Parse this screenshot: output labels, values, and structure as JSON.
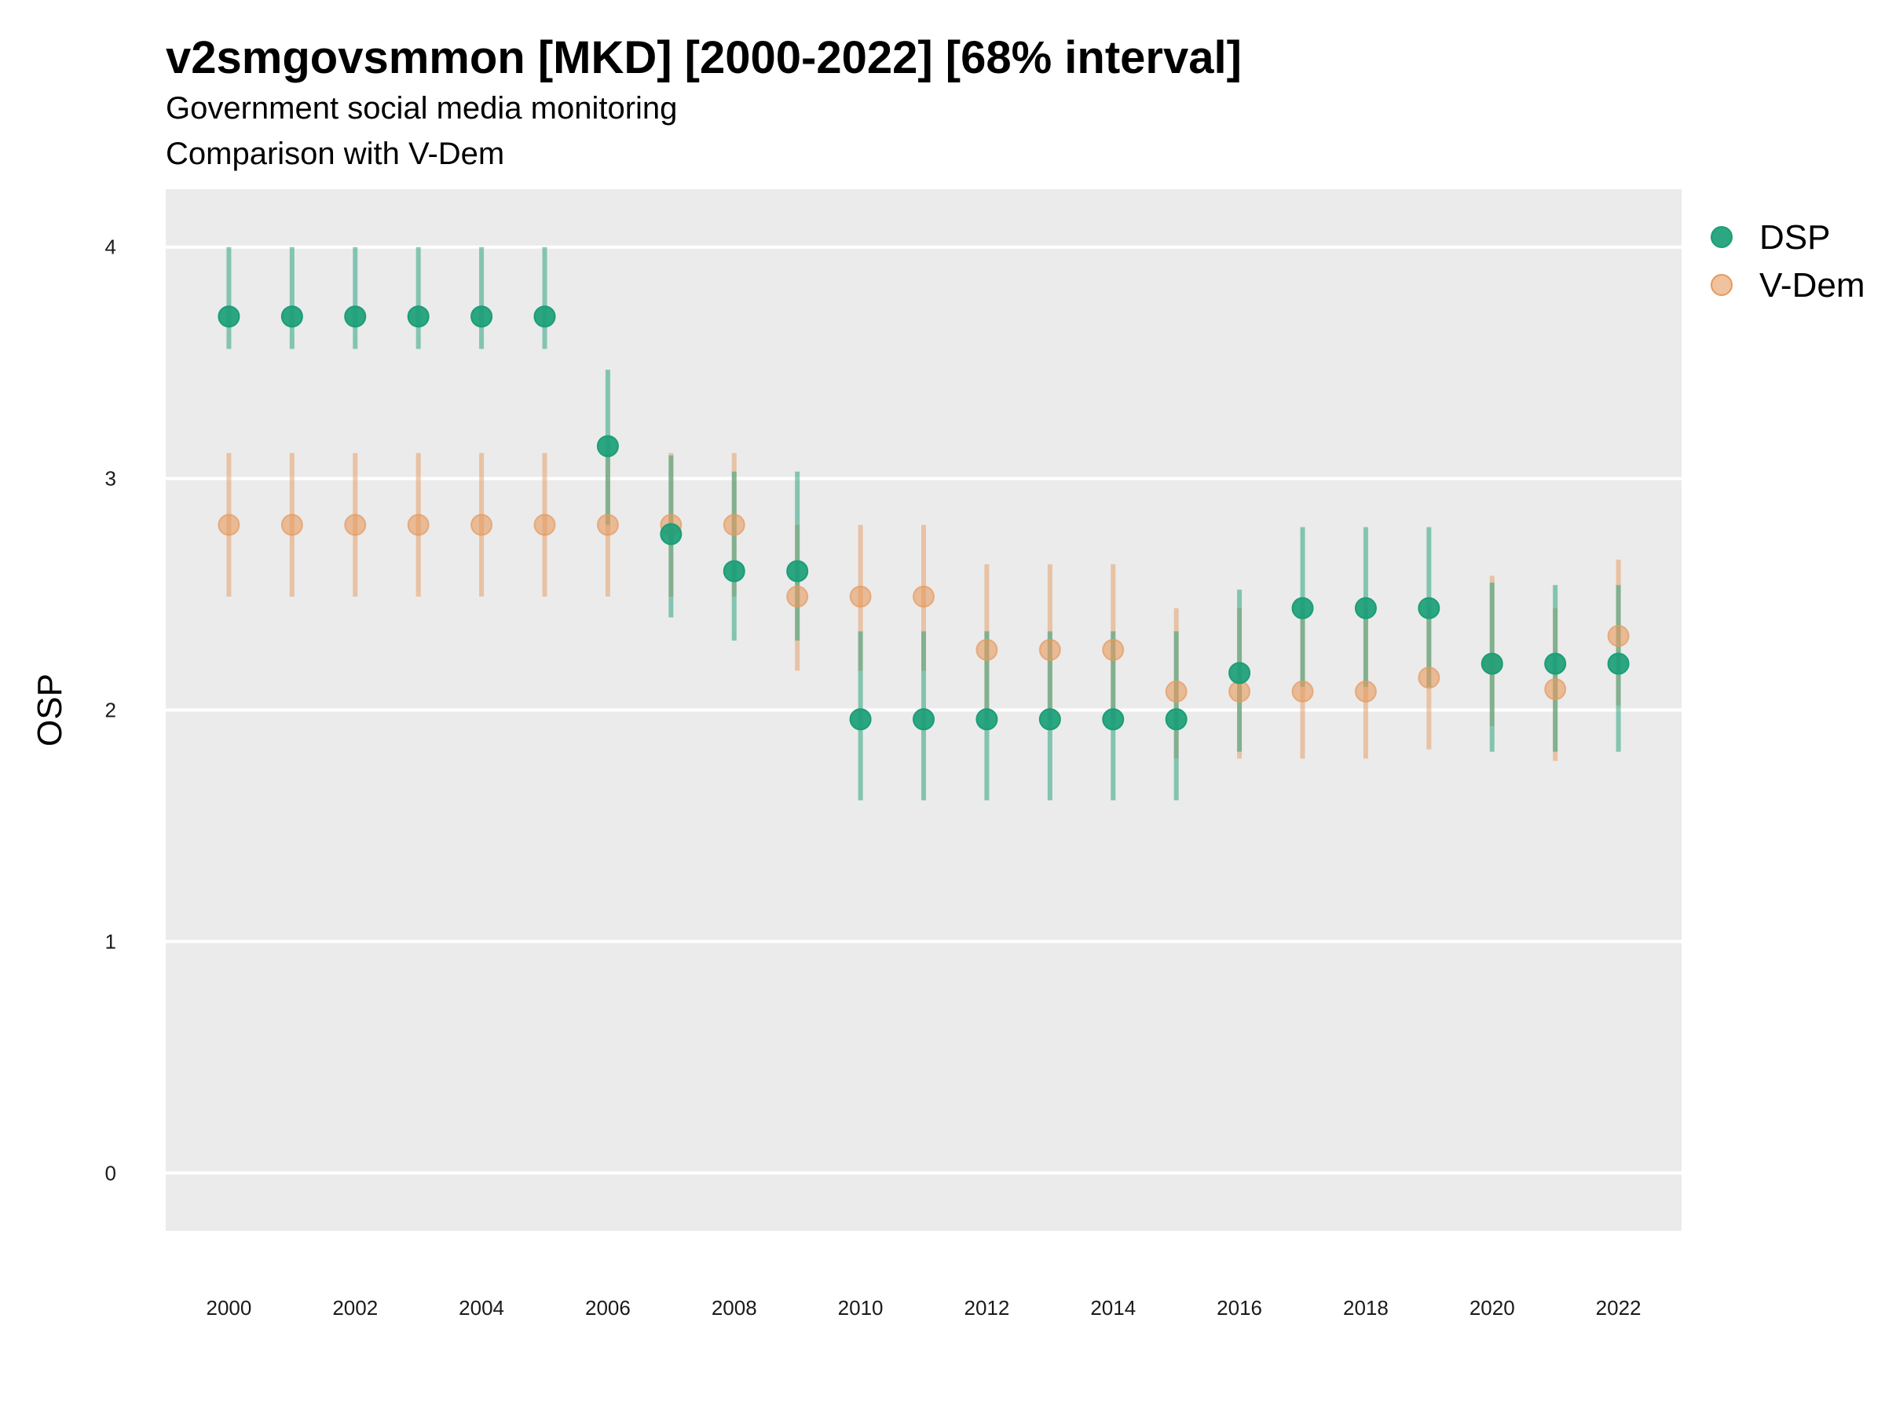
{
  "title": "v2smgovsmmon [MKD] [2000-2022] [68% interval]",
  "subtitle_1": "Government social media monitoring",
  "subtitle_2": "Comparison with V-Dem",
  "colors": {
    "DSP": "#1b9e77",
    "V-Dem": "#e69a5e",
    "panel": "#ebebeb",
    "grid": "#ffffff"
  },
  "chart_data": {
    "type": "scatter",
    "error_bars": "68% interval",
    "ylabel": "OSP",
    "xlabel": "",
    "ylim": [
      -0.25,
      4.25
    ],
    "xlim": [
      1999,
      2023
    ],
    "y_ticks": [
      0,
      1,
      2,
      3,
      4
    ],
    "x_ticks": [
      2000,
      2002,
      2004,
      2006,
      2008,
      2010,
      2012,
      2014,
      2016,
      2018,
      2020,
      2022
    ],
    "grid": true,
    "legend_position": "right-top",
    "series": [
      {
        "name": "DSP",
        "x": [
          2000,
          2001,
          2002,
          2003,
          2004,
          2005,
          2006,
          2007,
          2008,
          2009,
          2010,
          2011,
          2012,
          2013,
          2014,
          2015,
          2016,
          2017,
          2018,
          2019,
          2020,
          2021,
          2022
        ],
        "y": [
          3.7,
          3.7,
          3.7,
          3.7,
          3.7,
          3.7,
          3.14,
          2.76,
          2.6,
          2.6,
          1.96,
          1.96,
          1.96,
          1.96,
          1.96,
          1.96,
          2.16,
          2.44,
          2.44,
          2.44,
          2.2,
          2.2,
          2.2
        ],
        "lower": [
          3.56,
          3.56,
          3.56,
          3.56,
          3.56,
          3.56,
          2.8,
          2.4,
          2.3,
          2.3,
          1.61,
          1.61,
          1.61,
          1.61,
          1.61,
          1.61,
          1.82,
          2.1,
          2.1,
          2.1,
          1.82,
          1.82,
          1.82
        ],
        "upper": [
          4.0,
          4.0,
          4.0,
          4.0,
          4.0,
          4.0,
          3.47,
          3.1,
          3.03,
          3.03,
          2.34,
          2.34,
          2.34,
          2.34,
          2.34,
          2.34,
          2.52,
          2.79,
          2.79,
          2.79,
          2.55,
          2.54,
          2.54
        ]
      },
      {
        "name": "V-Dem",
        "x": [
          2000,
          2001,
          2002,
          2003,
          2004,
          2005,
          2006,
          2007,
          2008,
          2009,
          2010,
          2011,
          2012,
          2013,
          2014,
          2015,
          2016,
          2017,
          2018,
          2019,
          2020,
          2021,
          2022
        ],
        "y": [
          2.8,
          2.8,
          2.8,
          2.8,
          2.8,
          2.8,
          2.8,
          2.8,
          2.8,
          2.49,
          2.49,
          2.49,
          2.26,
          2.26,
          2.26,
          2.08,
          2.08,
          2.08,
          2.08,
          2.14,
          2.2,
          2.09,
          2.32
        ],
        "lower": [
          2.49,
          2.49,
          2.49,
          2.49,
          2.49,
          2.49,
          2.49,
          2.49,
          2.49,
          2.17,
          2.17,
          2.17,
          1.96,
          1.96,
          1.96,
          1.79,
          1.79,
          1.79,
          1.79,
          1.83,
          1.93,
          1.78,
          2.02
        ],
        "upper": [
          3.11,
          3.11,
          3.11,
          3.11,
          3.11,
          3.11,
          3.11,
          3.11,
          3.11,
          2.8,
          2.8,
          2.8,
          2.63,
          2.63,
          2.63,
          2.44,
          2.44,
          2.44,
          2.44,
          2.45,
          2.58,
          2.44,
          2.65
        ]
      }
    ]
  }
}
